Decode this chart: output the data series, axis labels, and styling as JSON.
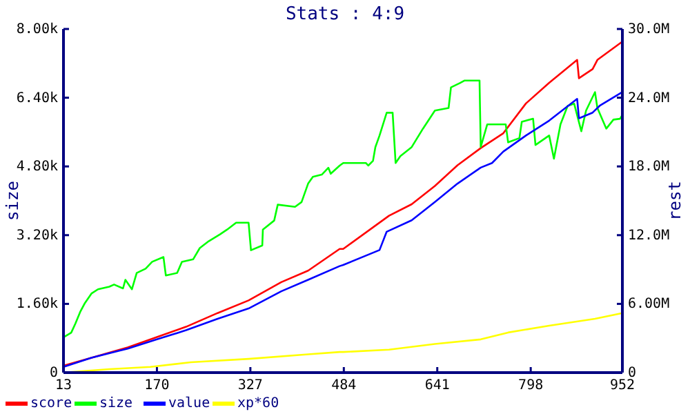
{
  "chart_data": {
    "type": "line",
    "title": "Stats : 4:9",
    "ylabel": "size",
    "y2label": "rest",
    "xlim": [
      13,
      952
    ],
    "xticks": [
      13,
      170,
      327,
      484,
      641,
      798,
      952
    ],
    "ylim": [
      0,
      8000
    ],
    "yticks": [
      0,
      {
        "value": 1600,
        "label": "1.60k"
      },
      {
        "value": 3200,
        "label": "3.20k"
      },
      {
        "value": 4800,
        "label": "4.80k"
      },
      {
        "value": 6400,
        "label": "6.40k"
      },
      {
        "value": 8000,
        "label": "8.00k"
      }
    ],
    "y2lim": [
      0,
      30
    ],
    "y2ticks": [
      0,
      {
        "value": 6,
        "label": "6.00M"
      },
      {
        "value": 12,
        "label": "12.0M"
      },
      {
        "value": 18,
        "label": "18.0M"
      },
      {
        "value": 24,
        "label": "24.0M"
      },
      {
        "value": 30,
        "label": "30.0M"
      }
    ],
    "legend": "bottom",
    "marker": "none",
    "line_style": "solid",
    "series": [
      {
        "name": "score",
        "color": "#ff0000",
        "axis": "y2",
        "x": [
          13,
          60,
          121,
          170,
          219,
          272,
          324,
          379,
          424,
          477,
          483,
          560,
          598,
          637,
          675,
          714,
          752,
          790,
          829,
          876,
          879,
          902,
          910,
          952
        ],
        "values": [
          0.6,
          1.3,
          2.2,
          3.1,
          4.0,
          5.2,
          6.3,
          7.9,
          8.9,
          10.8,
          10.8,
          13.7,
          14.7,
          16.3,
          18.1,
          19.6,
          20.9,
          23.5,
          25.3,
          27.3,
          25.7,
          26.5,
          27.3,
          28.9
        ]
      },
      {
        "name": "size",
        "color": "#00ff00",
        "x": [
          13,
          26,
          33,
          41,
          49,
          60,
          71,
          90,
          98,
          113,
          117,
          128,
          136,
          151,
          162,
          181,
          185,
          204,
          212,
          231,
          242,
          257,
          276,
          288,
          303,
          324,
          328,
          347,
          348,
          367,
          373,
          402,
          413,
          424,
          432,
          447,
          458,
          462,
          477,
          483,
          521,
          525,
          533,
          537,
          544,
          556,
          566,
          571,
          579,
          598,
          617,
          637,
          660,
          664,
          679,
          687,
          712,
          714,
          725,
          756,
          760,
          779,
          783,
          802,
          806,
          829,
          837,
          848,
          860,
          871,
          883,
          891,
          906,
          910,
          925,
          937,
          948,
          952
        ],
        "values": [
          820,
          930,
          1140,
          1410,
          1620,
          1840,
          1940,
          2000,
          2050,
          1960,
          2160,
          1940,
          2320,
          2420,
          2580,
          2690,
          2260,
          2320,
          2580,
          2640,
          2900,
          3060,
          3220,
          3330,
          3490,
          3490,
          2850,
          2960,
          3330,
          3540,
          3910,
          3860,
          3970,
          4400,
          4560,
          4610,
          4770,
          4630,
          4820,
          4880,
          4880,
          4820,
          4930,
          5250,
          5520,
          6050,
          6050,
          4880,
          5040,
          5250,
          5680,
          6100,
          6160,
          6640,
          6740,
          6800,
          6800,
          5250,
          5780,
          5780,
          5360,
          5460,
          5840,
          5910,
          5300,
          5520,
          4980,
          5780,
          6210,
          6260,
          5620,
          6100,
          6530,
          6160,
          5680,
          5890,
          5910,
          6000
        ]
      },
      {
        "name": "value",
        "color": "#0000ff",
        "axis": "y2",
        "x": [
          13,
          60,
          121,
          170,
          219,
          272,
          324,
          379,
          424,
          477,
          483,
          544,
          556,
          598,
          637,
          675,
          714,
          733,
          752,
          790,
          829,
          876,
          879,
          902,
          914,
          952
        ],
        "values": [
          0.5,
          1.3,
          2.1,
          2.9,
          3.7,
          4.7,
          5.6,
          7.1,
          8.1,
          9.3,
          9.4,
          10.7,
          12.3,
          13.3,
          14.9,
          16.5,
          17.9,
          18.3,
          19.3,
          20.7,
          22.0,
          23.9,
          22.2,
          22.7,
          23.3,
          24.5
        ]
      },
      {
        "name": "xp*60",
        "color": "#ffff00",
        "axis": "y2",
        "x": [
          13,
          90,
          159,
          227,
          324,
          424,
          477,
          483,
          560,
          637,
          714,
          760,
          829,
          906,
          952
        ],
        "values": [
          0,
          0.3,
          0.5,
          0.9,
          1.2,
          1.6,
          1.8,
          1.8,
          2.0,
          2.5,
          2.9,
          3.5,
          4.1,
          4.7,
          5.2
        ]
      }
    ]
  }
}
